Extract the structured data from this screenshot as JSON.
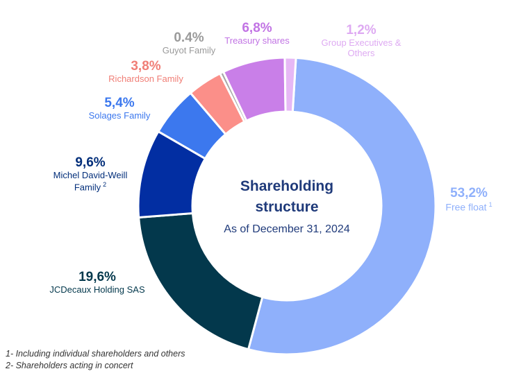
{
  "chart_data": {
    "type": "donut",
    "title": "Shareholding structure",
    "subtitle": "As of December 31, 2024",
    "slices": [
      {
        "label": "Free float",
        "pct_label": "53,2%",
        "value": 53.2,
        "color": "#8fb0fb",
        "label_color": "#8fb0fb",
        "note": "1"
      },
      {
        "label": "JCDecaux Holding SAS",
        "pct_label": "19,6%",
        "value": 19.6,
        "color": "#03384c",
        "label_color": "#03384c",
        "note": ""
      },
      {
        "label": "Michel David-Weill Family",
        "pct_label": "9,6%",
        "value": 9.6,
        "color": "#022ea2",
        "label_color": "#022e7a",
        "note": "2"
      },
      {
        "label": "Solages Family",
        "pct_label": "5,4%",
        "value": 5.4,
        "color": "#3c78ee",
        "label_color": "#3c78ee",
        "note": ""
      },
      {
        "label": "Richardson Family",
        "pct_label": "3,8%",
        "value": 3.8,
        "color": "#fb8f89",
        "label_color": "#f07e76",
        "note": ""
      },
      {
        "label": "Guyot Family",
        "pct_label": "0.4%",
        "value": 0.4,
        "color": "#a6a6a6",
        "label_color": "#9a9a9a",
        "note": ""
      },
      {
        "label": "Treasury shares",
        "pct_label": "6,8%",
        "value": 6.8,
        "color": "#c97fe8",
        "label_color": "#c173e4",
        "note": ""
      },
      {
        "label": "Group Executives & Others",
        "pct_label": "1,2%",
        "value": 1.2,
        "color": "#e6b8f5",
        "label_color": "#deaaf2",
        "note": ""
      }
    ]
  },
  "labels": {
    "free_float": {
      "pct": "53,2%",
      "name": "Free float",
      "sup": "1"
    },
    "jcdecaux": {
      "pct": "19,6%",
      "name": "JCDecaux Holding SAS"
    },
    "david_weill": {
      "pct": "9,6%",
      "name_line1": "Michel David-Weill",
      "name_line2": "Family",
      "sup": "2"
    },
    "solages": {
      "pct": "5,4%",
      "name": "Solages Family"
    },
    "richardson": {
      "pct": "3,8%",
      "name": "Richardson Family"
    },
    "guyot": {
      "pct": "0.4%",
      "name": "Guyot Family"
    },
    "treasury": {
      "pct": "6,8%",
      "name": "Treasury shares"
    },
    "executives": {
      "pct": "1,2%",
      "name_line1": "Group Executives &",
      "name_line2": "Others"
    }
  },
  "center": {
    "title_line1": "Shareholding",
    "title_line2": "structure",
    "subtitle": "As of December 31, 2024"
  },
  "footnotes": {
    "note1": "1- Including individual shareholders and others",
    "note2": "2- Shareholders acting in concert"
  }
}
